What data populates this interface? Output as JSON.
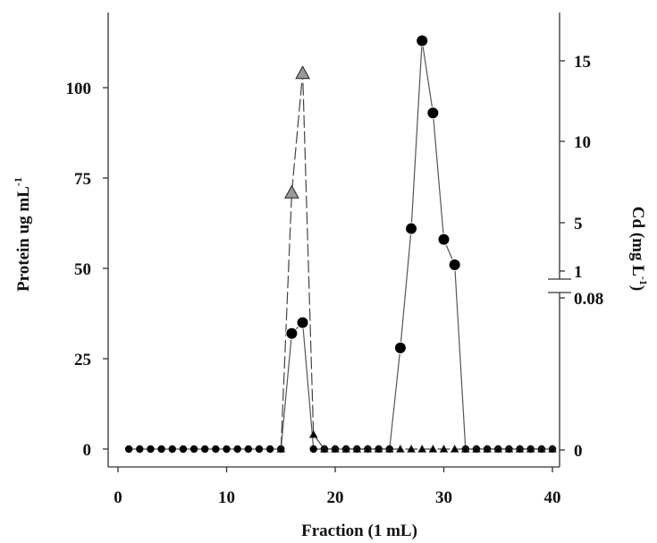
{
  "chart_data": {
    "type": "line",
    "xlabel": "Fraction (1 mL)",
    "ylabel": "Protein ug mL",
    "ylabel_sup": "-1",
    "y2label": "Cd (mg L",
    "y2label_sup": "-1",
    "y2label_close": ")",
    "xlim": [
      0,
      40
    ],
    "ylim": [
      0,
      100
    ],
    "xticks": [
      "0",
      "10",
      "20",
      "30",
      "40"
    ],
    "yticks": [
      "0",
      "25",
      "50",
      "75",
      "100"
    ],
    "y2ticks_upper": [
      "1",
      "5",
      "10",
      "15"
    ],
    "y2ticks_lower": [
      "0",
      "0.08"
    ],
    "grid": false,
    "legend": "none",
    "series": [
      {
        "marker": "circle",
        "color": "#000000",
        "axis": "left",
        "x": [
          1,
          2,
          3,
          4,
          5,
          6,
          7,
          8,
          9,
          10,
          11,
          12,
          13,
          14,
          15,
          16,
          17,
          18,
          19,
          20,
          21,
          22,
          23,
          24,
          25,
          26,
          27,
          28,
          29,
          30,
          31,
          32,
          33,
          34,
          35,
          36,
          37,
          38,
          39,
          40
        ],
        "y": [
          0,
          0,
          0,
          0,
          0,
          0,
          0,
          0,
          0,
          0,
          0,
          0,
          0,
          0,
          0,
          32,
          35,
          0,
          0,
          0,
          0,
          0,
          0,
          0,
          0,
          28,
          61,
          113,
          93,
          58,
          51,
          0,
          0,
          0,
          0,
          0,
          0,
          0,
          0,
          0
        ]
      },
      {
        "marker": "triangle",
        "color": "#000000",
        "fill_peak": "#999999",
        "axis": "right",
        "x": [
          15,
          16,
          17,
          18,
          19,
          20,
          21,
          22,
          23,
          24,
          25,
          26,
          27,
          28,
          29,
          30,
          31,
          32,
          33,
          34,
          35,
          36,
          37,
          38,
          39,
          40
        ],
        "y": [
          0,
          71,
          104,
          4,
          0,
          0,
          0,
          0,
          0,
          0,
          0,
          0,
          0,
          0,
          0,
          0,
          0,
          0,
          0,
          0,
          0,
          0,
          0,
          0,
          0,
          0
        ],
        "y_note": "plotted against the left-axis scale"
      }
    ]
  }
}
